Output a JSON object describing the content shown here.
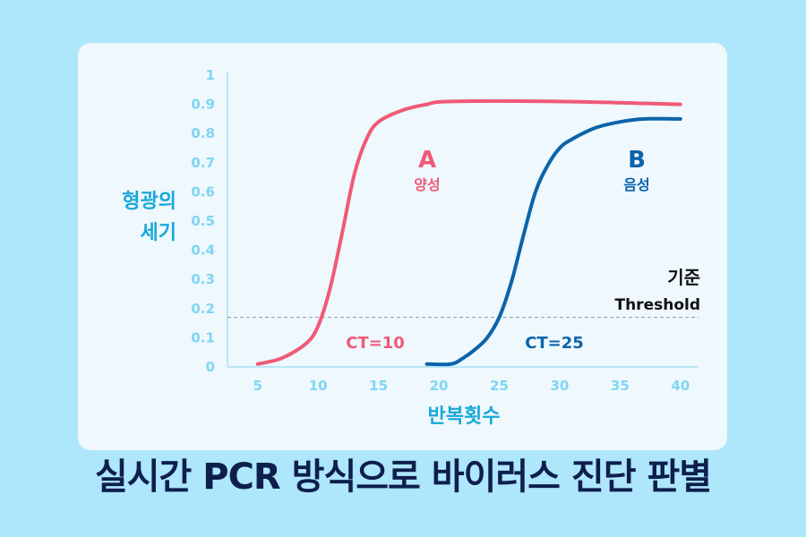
{
  "title": "실시간 PCR 방식으로 바이러스 진단 판별",
  "chart_data": {
    "type": "line",
    "ylabel_lines": [
      "형광의",
      "세기"
    ],
    "xlabel": "반복횟수",
    "xlim": [
      2.5,
      41.5
    ],
    "ylim": [
      0,
      1
    ],
    "x_ticks": [
      5,
      10,
      15,
      20,
      25,
      30,
      35,
      40
    ],
    "y_ticks": [
      0,
      0.1,
      0.2,
      0.3,
      0.4,
      0.5,
      0.6,
      0.7,
      0.8,
      0.9,
      1
    ],
    "y_tick_labels": [
      "0",
      "0.1",
      "0.2",
      "0.3",
      "0.4",
      "0.5",
      "0.6",
      "0.7",
      "0.8",
      "0.9",
      "1"
    ],
    "threshold": {
      "value": 0.17,
      "label": "기준",
      "sublabel": "Threshold"
    },
    "series": [
      {
        "name": "A",
        "sublabel": "양성",
        "ct_label": "CT=10",
        "color": "#f05a77",
        "x": [
          5,
          7,
          9,
          10,
          11,
          12,
          13,
          14,
          15,
          17,
          19,
          21,
          30,
          40
        ],
        "y": [
          0.01,
          0.03,
          0.08,
          0.14,
          0.27,
          0.46,
          0.66,
          0.78,
          0.84,
          0.88,
          0.9,
          0.91,
          0.91,
          0.9
        ]
      },
      {
        "name": "B",
        "sublabel": "음성",
        "ct_label": "CT=25",
        "color": "#0a64aa",
        "x": [
          19,
          21,
          22,
          23,
          24,
          25,
          26,
          27,
          28,
          29,
          30,
          31,
          33,
          35,
          37,
          40
        ],
        "y": [
          0.01,
          0.01,
          0.03,
          0.06,
          0.1,
          0.17,
          0.29,
          0.45,
          0.6,
          0.69,
          0.75,
          0.78,
          0.82,
          0.84,
          0.85,
          0.85
        ]
      }
    ]
  }
}
